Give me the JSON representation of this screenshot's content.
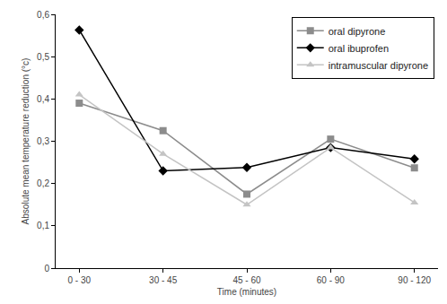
{
  "chart_data": {
    "type": "line",
    "x_label": "Time (minutes)",
    "y_label": "Absolute mean temperature reduction (°c)",
    "categories": [
      "0 - 30",
      "30 - 45",
      "45 - 60",
      "60 - 90",
      "90 - 120"
    ],
    "series": [
      {
        "name": "oral dipyrone",
        "color": "#8c8c8c",
        "marker": "square",
        "line_style": "solid",
        "values": [
          0.39,
          0.325,
          0.175,
          0.305,
          0.237
        ]
      },
      {
        "name": "oral ibuprofen",
        "color": "#000000",
        "marker": "diamond",
        "line_style": "solid",
        "values": [
          0.563,
          0.23,
          0.238,
          0.285,
          0.258
        ]
      },
      {
        "name": "intramuscular dipyrone",
        "color": "#c4c4c4",
        "marker": "triangle-up",
        "line_style": "solid",
        "values": [
          0.41,
          0.27,
          0.15,
          0.285,
          0.155
        ]
      }
    ],
    "ylim": [
      0,
      0.6
    ],
    "yticks": [
      0,
      {
        "value": 0.1,
        "label": "0,1"
      },
      {
        "value": 0.2,
        "label": "0,2"
      },
      {
        "value": 0.3,
        "label": "0,3"
      },
      {
        "value": 0.4,
        "label": "0,4"
      },
      {
        "value": 0.5,
        "label": "0,5"
      },
      {
        "value": 0.6,
        "label": "0,6"
      }
    ],
    "grid": false,
    "legend": "top-right"
  }
}
